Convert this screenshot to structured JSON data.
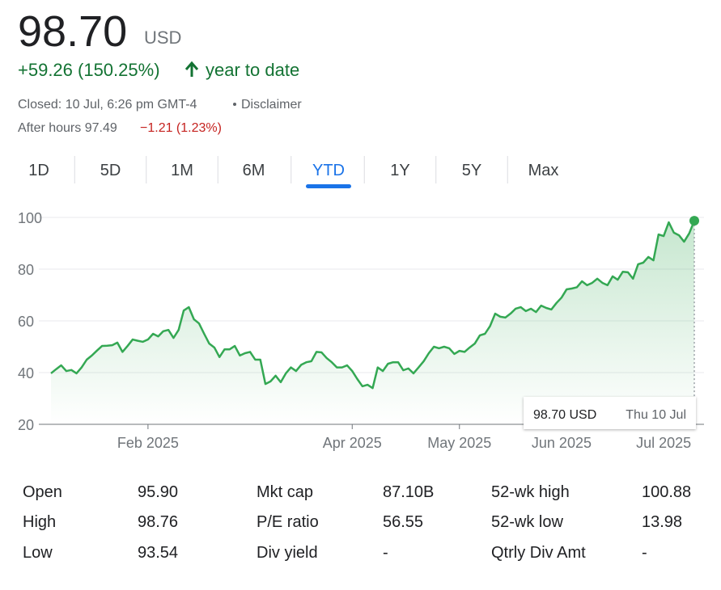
{
  "header": {
    "price": "98.70",
    "currency": "USD",
    "change": "+59.26 (150.25%)",
    "change_period": "year to date",
    "closed": "Closed: 10 Jul, 6:26 pm GMT-4",
    "disclaimer": "Disclaimer",
    "after_hours": "After hours 97.49",
    "after_hours_change": "−1.21 (1.23%)"
  },
  "tabs": [
    "1D",
    "5D",
    "1M",
    "6M",
    "YTD",
    "1Y",
    "5Y",
    "Max"
  ],
  "active_tab": 4,
  "chart_data": {
    "type": "line",
    "color": "#34a853",
    "categories": [
      null,
      null,
      null,
      null,
      null,
      null,
      null,
      null,
      null,
      null,
      null,
      null,
      null,
      null,
      null,
      null,
      null,
      null,
      null,
      "Feb 2025",
      null,
      null,
      null,
      null,
      null,
      null,
      null,
      null,
      null,
      null,
      null,
      null,
      null,
      null,
      null,
      null,
      null,
      null,
      null,
      null,
      null,
      null,
      null,
      null,
      null,
      null,
      null,
      null,
      null,
      null,
      null,
      null,
      null,
      null,
      null,
      null,
      null,
      null,
      null,
      "Apr 2025",
      null,
      null,
      null,
      null,
      null,
      null,
      null,
      null,
      null,
      null,
      null,
      null,
      null,
      null,
      null,
      null,
      null,
      null,
      null,
      null,
      "May 2025",
      null,
      null,
      null,
      null,
      null,
      null,
      null,
      null,
      null,
      null,
      null,
      null,
      null,
      null,
      null,
      null,
      null,
      null,
      null,
      "Jun 2025",
      null,
      null,
      null,
      null,
      null,
      null,
      null,
      null,
      null,
      null,
      null,
      null,
      null,
      null,
      null,
      null,
      null,
      null,
      null,
      "Jul 2025",
      null,
      null,
      null,
      null,
      null,
      null
    ],
    "values": [
      39.7,
      41.3,
      42.8,
      40.6,
      41,
      39.7,
      42,
      45,
      46.6,
      48.5,
      50.3,
      50.4,
      50.6,
      51.6,
      48,
      50.3,
      52.8,
      52.3,
      51.9,
      52.8,
      55,
      54,
      56,
      56.5,
      53.4,
      56.5,
      64,
      65.3,
      60.6,
      59,
      55,
      51.2,
      49.7,
      46,
      49,
      49,
      50.3,
      46.6,
      47.5,
      48,
      45,
      45,
      35.6,
      36.6,
      38.8,
      36.3,
      39.7,
      42,
      40.6,
      43,
      44,
      44.4,
      48,
      47.8,
      45.6,
      44,
      42,
      42,
      42.8,
      40.6,
      37.5,
      34.7,
      35.3,
      34,
      42,
      40.6,
      43.4,
      44,
      44,
      40.9,
      41.6,
      39.7,
      42,
      44.4,
      47.5,
      50,
      49.4,
      50,
      49.4,
      47.2,
      48.4,
      48,
      49.7,
      51.2,
      54.4,
      55,
      58,
      62.8,
      61.6,
      61.3,
      62.8,
      64.7,
      65.3,
      63.8,
      64.7,
      63.4,
      65.9,
      65,
      64.4,
      66.9,
      69,
      72.2,
      72.5,
      73,
      75.3,
      73.8,
      74.7,
      76.3,
      74.7,
      73.8,
      77.2,
      75.9,
      79,
      78.8,
      76.3,
      81.9,
      82.5,
      84.7,
      83.4,
      93.4,
      92.8,
      98.1,
      94.1,
      93.1,
      90.6,
      93.8,
      98.7
    ],
    "ylim": [
      20,
      100
    ],
    "yticks": [
      20,
      40,
      60,
      80,
      100
    ],
    "grid": true,
    "tooltip": {
      "value": "98.70 USD",
      "date": "Thu 10 Jul"
    }
  },
  "stats": [
    [
      {
        "label": "Open",
        "value": "95.90"
      },
      {
        "label": "High",
        "value": "98.76"
      },
      {
        "label": "Low",
        "value": "93.54"
      }
    ],
    [
      {
        "label": "Mkt cap",
        "value": "87.10B"
      },
      {
        "label": "P/E ratio",
        "value": "56.55"
      },
      {
        "label": "Div yield",
        "value": "-"
      }
    ],
    [
      {
        "label": "52-wk high",
        "value": "100.88"
      },
      {
        "label": "52-wk low",
        "value": "13.98"
      },
      {
        "label": "Qtrly Div Amt",
        "value": "-"
      }
    ]
  ]
}
